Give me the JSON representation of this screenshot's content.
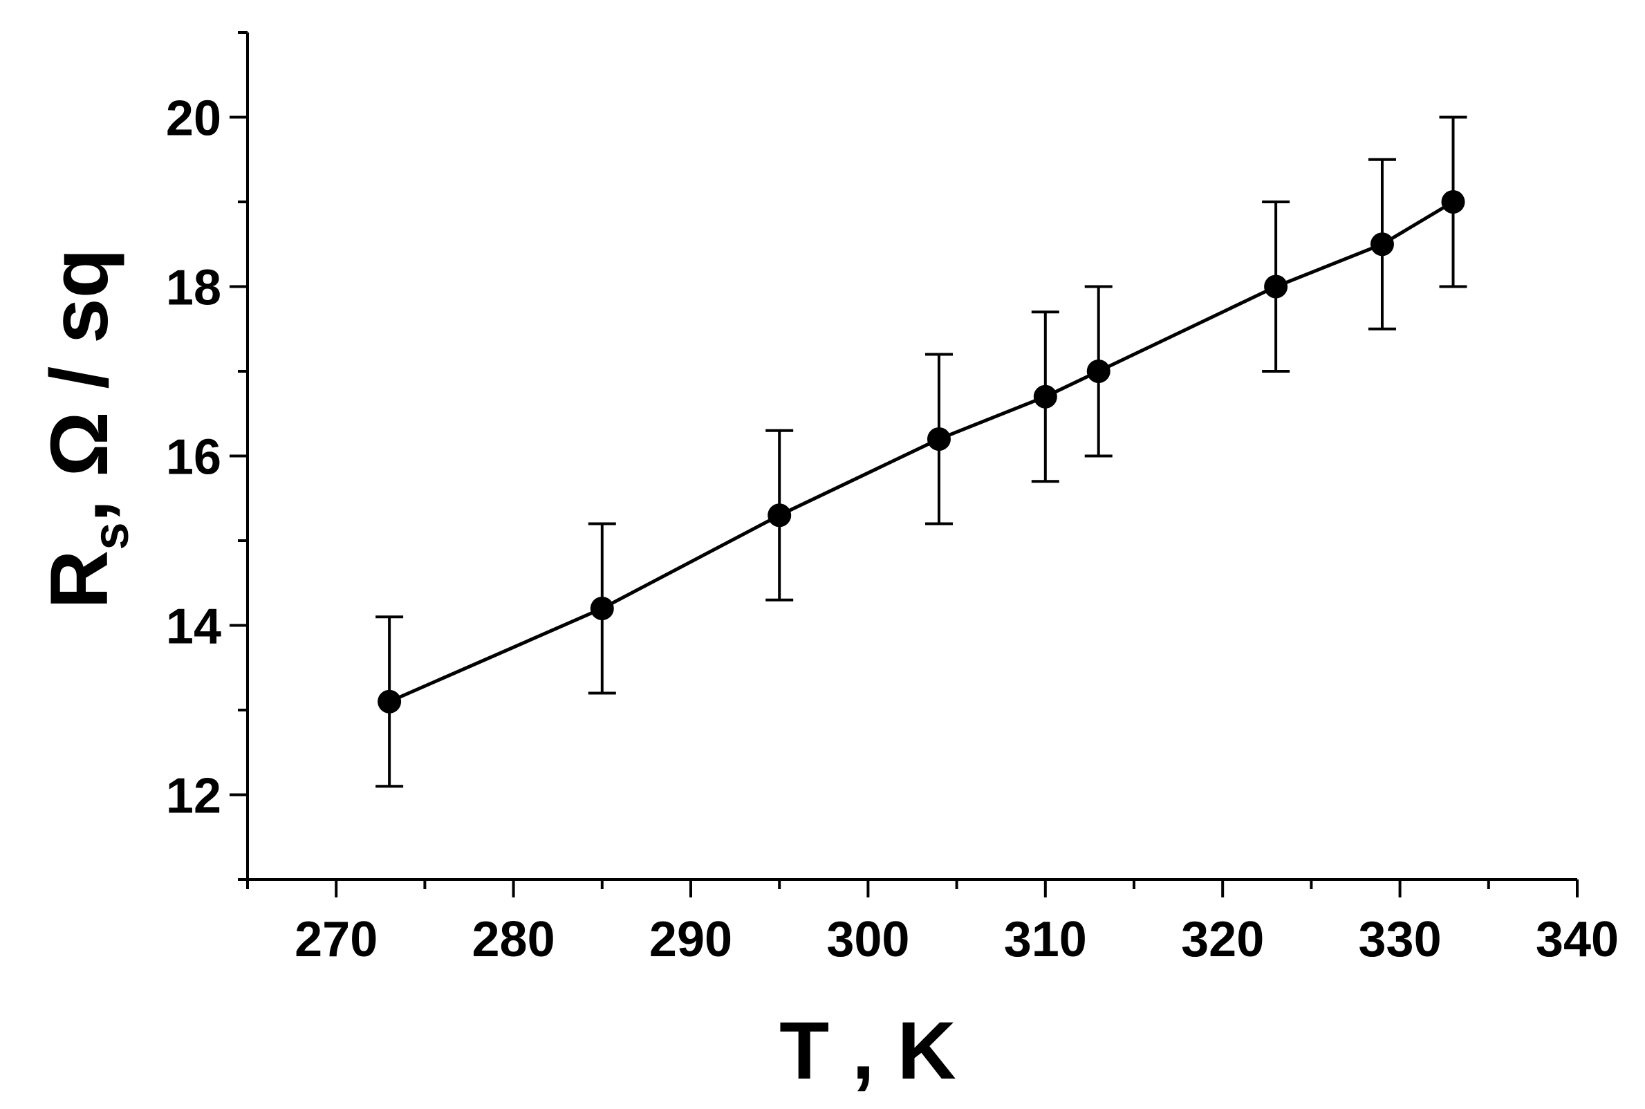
{
  "chart_data": {
    "type": "scatter",
    "xlabel": "T , K",
    "ylabel_main": "R",
    "ylabel_sub": "s",
    "ylabel_rest": ", Ω / sq",
    "xlim": [
      265,
      340
    ],
    "ylim": [
      11,
      21
    ],
    "x_ticks": [
      270,
      280,
      290,
      300,
      310,
      320,
      330,
      340
    ],
    "y_ticks": [
      12,
      14,
      16,
      18,
      20
    ],
    "x_minor_step": 5,
    "y_minor_step": 1,
    "grid": false,
    "series": [
      {
        "line": true,
        "marker": "filled-circle",
        "color": "#000000",
        "points": [
          {
            "x": 273,
            "y": 13.1,
            "err": 1.0
          },
          {
            "x": 285,
            "y": 14.2,
            "err": 1.0
          },
          {
            "x": 295,
            "y": 15.3,
            "err": 1.0
          },
          {
            "x": 304,
            "y": 16.2,
            "err": 1.0
          },
          {
            "x": 310,
            "y": 16.7,
            "err": 1.0
          },
          {
            "x": 313,
            "y": 17.0,
            "err": 1.0
          },
          {
            "x": 323,
            "y": 18.0,
            "err": 1.0
          },
          {
            "x": 329,
            "y": 18.5,
            "err": 1.0
          },
          {
            "x": 333,
            "y": 19.0,
            "err": 1.0
          }
        ]
      }
    ]
  }
}
